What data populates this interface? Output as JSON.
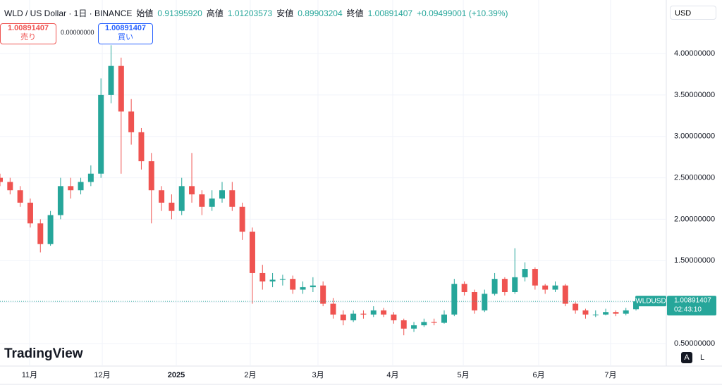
{
  "header": {
    "symbol": "WLD / US Dollar · 1日 · BINANCE",
    "ohlc": [
      {
        "label": "始値",
        "value": "0.91395920"
      },
      {
        "label": "高値",
        "value": "1.01203573"
      },
      {
        "label": "安値",
        "value": "0.89903204"
      },
      {
        "label": "終値",
        "value": "1.00891407"
      }
    ],
    "change": "+0.09499001 (+10.39%)",
    "currency": "USD"
  },
  "trade": {
    "sell_price": "1.00891407",
    "sell_label": "売り",
    "spread": "0.00000000",
    "buy_price": "1.00891407",
    "buy_label": "買い"
  },
  "footer": {
    "logo": "TradingView",
    "auto": "A",
    "log": "L"
  },
  "chart_data": {
    "type": "candlestick",
    "up_color": "#26a69a",
    "down_color": "#ef5350",
    "grid": true,
    "xlim": [
      0,
      66
    ],
    "xticks": [
      {
        "value": 2.93,
        "label": "11月"
      },
      {
        "value": 10.13,
        "label": "12月"
      },
      {
        "value": 17.46,
        "label": "2025"
      },
      {
        "value": 24.79,
        "label": "2月"
      },
      {
        "value": 31.5,
        "label": "3月"
      },
      {
        "value": 38.9,
        "label": "4月"
      },
      {
        "value": 45.89,
        "label": "5月"
      },
      {
        "value": 53.36,
        "label": "6月"
      },
      {
        "value": 60.48,
        "label": "7月"
      }
    ],
    "ylim": [
      0.228,
      4.646
    ],
    "yticks": [
      {
        "value": 0.5,
        "label": "0.50000000"
      },
      {
        "value": 1.0,
        "label": "1.00000000"
      },
      {
        "value": 1.5,
        "label": "1.50000000"
      },
      {
        "value": 2.0,
        "label": "2.00000000"
      },
      {
        "value": 2.5,
        "label": "2.50000000"
      },
      {
        "value": 3.0,
        "label": "3.00000000"
      },
      {
        "value": 3.5,
        "label": "3.50000000"
      },
      {
        "value": 4.0,
        "label": "4.00000000"
      }
    ],
    "open": [
      2.5,
      2.45,
      2.35,
      2.2,
      1.95,
      1.7,
      2.05,
      2.4,
      2.35,
      2.45,
      2.55,
      3.5,
      3.85,
      3.3,
      3.05,
      2.7,
      2.35,
      2.2,
      2.1,
      2.4,
      2.3,
      2.15,
      2.25,
      2.35,
      2.15,
      1.85,
      1.35,
      1.25,
      1.27,
      1.28,
      1.15,
      1.18,
      1.2,
      0.98,
      0.85,
      0.78,
      0.86,
      0.85,
      0.9,
      0.85,
      0.78,
      0.68,
      0.72,
      0.76,
      0.75,
      0.85,
      1.22,
      1.12,
      0.9,
      1.1,
      1.28,
      1.12,
      1.3,
      1.4,
      1.2,
      1.15,
      1.2,
      0.98,
      0.9,
      0.85,
      0.85,
      0.88,
      0.86,
      0.9139592
    ],
    "high": [
      2.55,
      2.5,
      2.4,
      2.25,
      2.0,
      2.1,
      2.5,
      2.5,
      2.5,
      2.65,
      3.7,
      4.1,
      3.95,
      3.45,
      3.1,
      2.8,
      2.4,
      2.3,
      2.5,
      2.8,
      2.35,
      2.35,
      2.45,
      2.45,
      2.2,
      1.9,
      1.45,
      1.35,
      1.33,
      1.32,
      1.25,
      1.3,
      1.25,
      1.05,
      0.9,
      0.9,
      0.9,
      0.95,
      0.93,
      0.88,
      0.8,
      0.76,
      0.8,
      0.8,
      0.9,
      1.28,
      1.25,
      1.15,
      1.15,
      1.35,
      1.3,
      1.65,
      1.48,
      1.42,
      1.22,
      1.25,
      1.22,
      1.0,
      0.92,
      0.9,
      0.92,
      0.9,
      0.93,
      1.01203573
    ],
    "low": [
      2.4,
      2.3,
      2.15,
      1.9,
      1.6,
      1.68,
      2.0,
      2.25,
      2.3,
      2.4,
      2.5,
      3.4,
      2.55,
      2.9,
      2.6,
      1.95,
      2.1,
      2.0,
      2.05,
      2.2,
      2.05,
      2.1,
      2.2,
      2.1,
      1.75,
      0.98,
      1.15,
      1.18,
      1.2,
      1.1,
      1.1,
      1.12,
      0.95,
      0.8,
      0.72,
      0.76,
      0.8,
      0.82,
      0.82,
      0.74,
      0.6,
      0.64,
      0.7,
      0.72,
      0.74,
      0.83,
      1.08,
      0.86,
      0.88,
      1.08,
      1.08,
      1.1,
      1.25,
      1.15,
      1.1,
      1.12,
      0.95,
      0.86,
      0.8,
      0.82,
      0.84,
      0.83,
      0.84,
      0.89903204
    ],
    "close": [
      2.45,
      2.35,
      2.2,
      1.95,
      1.7,
      2.05,
      2.4,
      2.35,
      2.45,
      2.55,
      3.5,
      3.85,
      3.3,
      3.05,
      2.7,
      2.35,
      2.2,
      2.1,
      2.4,
      2.3,
      2.15,
      2.25,
      2.35,
      2.15,
      1.85,
      1.35,
      1.25,
      1.27,
      1.28,
      1.15,
      1.18,
      1.2,
      0.98,
      0.85,
      0.78,
      0.86,
      0.85,
      0.9,
      0.85,
      0.78,
      0.68,
      0.72,
      0.76,
      0.75,
      0.85,
      1.22,
      1.12,
      0.9,
      1.1,
      1.28,
      1.12,
      1.3,
      1.4,
      1.2,
      1.15,
      1.2,
      0.98,
      0.9,
      0.85,
      0.85,
      0.88,
      0.86,
      0.9,
      1.00891407
    ],
    "symbol_label": "WLDUSD",
    "last_price": {
      "value": 1.00891407,
      "label": "1.00891407"
    },
    "countdown": "02:43:10"
  }
}
